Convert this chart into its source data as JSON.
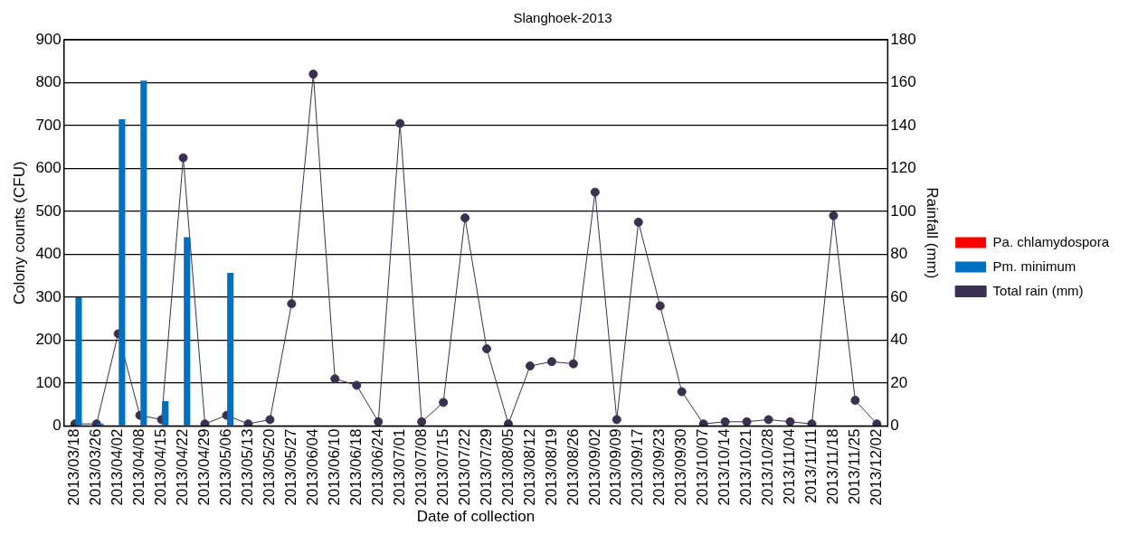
{
  "chart_data": {
    "type": "bar",
    "title": "Slanghoek-2013",
    "xlabel": "Date of collection",
    "ylabel": "Colony counts (CFU)",
    "y2label": "Rainfall (mm)",
    "categories": [
      "2013/03/18",
      "2013/03/26",
      "2013/04/02",
      "2013/04/08",
      "2013/04/15",
      "2013/04/22",
      "2013/04/29",
      "2013/05/06",
      "2013/05/13",
      "2013/05/20",
      "2013/05/27",
      "2013/06/04",
      "2013/06/10",
      "2013/06/18",
      "2013/06/24",
      "2013/07/01",
      "2013/07/08",
      "2013/07/15",
      "2013/07/22",
      "2013/07/29",
      "2013/08/05",
      "2013/08/12",
      "2013/08/19",
      "2013/08/26",
      "2013/09/02",
      "2013/09/09",
      "2013/09/17",
      "2013/09/23",
      "2013/09/30",
      "2013/10/07",
      "2013/10/14",
      "2013/10/21",
      "2013/10/28",
      "2013/11/04",
      "2013/11/11",
      "2013/11/18",
      "2013/11/25",
      "2013/12/02"
    ],
    "series": [
      {
        "name": "Pa. chlamydospora",
        "color": "#ff0000",
        "values": [
          0,
          0,
          0,
          0,
          0,
          0,
          0,
          0,
          0,
          0,
          0,
          0,
          0,
          0,
          0,
          0,
          0,
          0,
          0,
          0,
          0,
          0,
          0,
          0,
          0,
          0,
          0,
          0,
          0,
          0,
          0,
          0,
          0,
          0,
          0,
          0,
          0,
          0
        ]
      },
      {
        "name": "Pm. minimum",
        "color": "#0070c0",
        "values": [
          300,
          6,
          715,
          805,
          58,
          440,
          0,
          357,
          0,
          0,
          0,
          0,
          0,
          0,
          0,
          0,
          0,
          0,
          0,
          0,
          0,
          0,
          0,
          0,
          0,
          0,
          0,
          0,
          0,
          0,
          0,
          0,
          0,
          0,
          0,
          0,
          0,
          0
        ]
      },
      {
        "name": "Total rain (mm)",
        "type": "line",
        "axis": "y2",
        "color": "#3a3050",
        "marker": "circle",
        "values": [
          1,
          1,
          43,
          5,
          3,
          125,
          1,
          5,
          1,
          3,
          57,
          164,
          22,
          19,
          2,
          141,
          2,
          11,
          97,
          36,
          1,
          28,
          30,
          29,
          109,
          3,
          95,
          56,
          16,
          1,
          2,
          2,
          3,
          2,
          1,
          98,
          12,
          1
        ]
      }
    ],
    "ylim": [
      0,
      900
    ],
    "yticks": [
      0,
      100,
      200,
      300,
      400,
      500,
      600,
      700,
      800,
      900
    ],
    "y2lim": [
      0,
      180
    ],
    "y2ticks": [
      0,
      20,
      40,
      60,
      80,
      100,
      120,
      140,
      160,
      180
    ],
    "grid": "y",
    "legend": "right"
  }
}
